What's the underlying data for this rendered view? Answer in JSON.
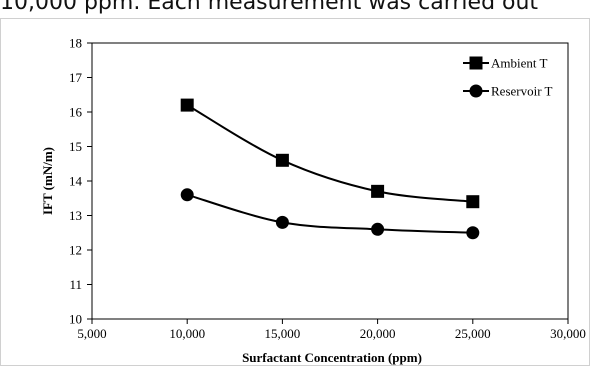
{
  "caption": "10,000 ppm. Each measurement was carried out",
  "chart_data": {
    "type": "line",
    "title": "",
    "xlabel": "Surfactant Concentration (ppm)",
    "ylabel": "IFT (mN/m)",
    "xlim": [
      5000,
      30000
    ],
    "ylim": [
      10,
      18
    ],
    "xticks": [
      5000,
      10000,
      15000,
      20000,
      25000,
      30000
    ],
    "xtick_labels": [
      "5,000",
      "10,000",
      "15,000",
      "20,000",
      "25,000",
      "30,000"
    ],
    "yticks": [
      10,
      11,
      12,
      13,
      14,
      15,
      16,
      17,
      18
    ],
    "ytick_labels": [
      "10",
      "11",
      "12",
      "13",
      "14",
      "15",
      "16",
      "17",
      "18"
    ],
    "grid": false,
    "legend_position": "top-right",
    "x": [
      10000,
      15000,
      20000,
      25000
    ],
    "series": [
      {
        "name": "Ambient T",
        "marker": "square",
        "values": [
          16.2,
          14.6,
          13.7,
          13.4
        ]
      },
      {
        "name": "Reservoir T",
        "marker": "circle",
        "values": [
          13.6,
          12.8,
          12.6,
          12.5
        ]
      }
    ]
  }
}
